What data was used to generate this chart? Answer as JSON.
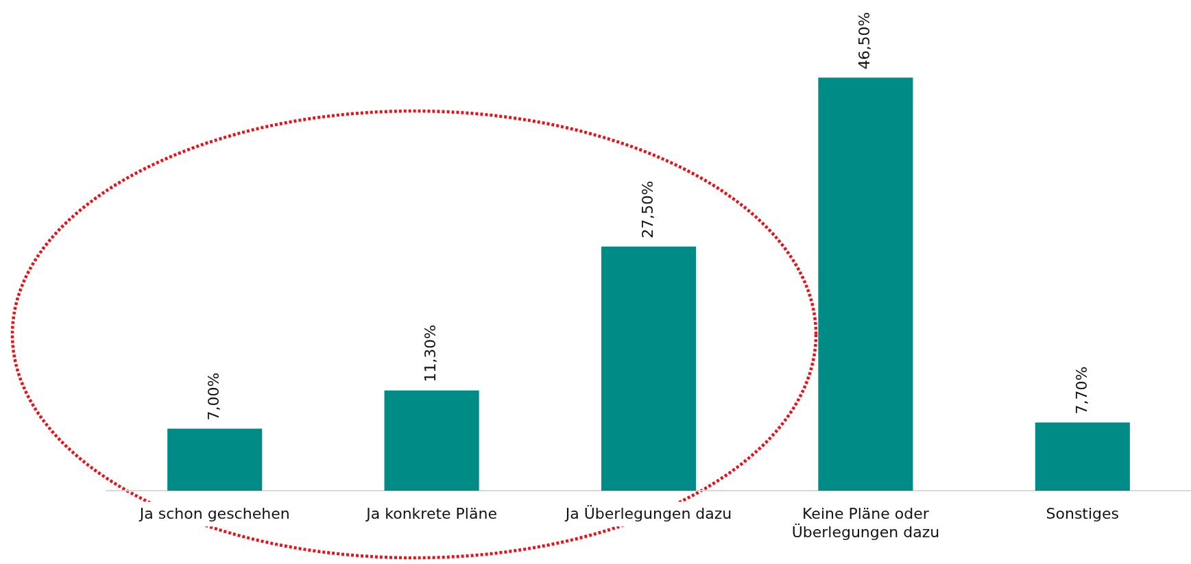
{
  "chart_data": {
    "type": "bar",
    "categories": [
      "Ja schon geschehen",
      "Ja konkrete Pläne",
      "Ja Überlegungen dazu",
      "Keine Pläne oder\nÜberlegungen dazu",
      "Sonstiges"
    ],
    "values": [
      7.0,
      11.3,
      27.5,
      46.5,
      7.7
    ],
    "value_labels": [
      "7,00%",
      "11,30%",
      "27,50%",
      "46,50%",
      "7,70%"
    ],
    "color": "#008b87",
    "grid": false,
    "legend": false
  }
}
